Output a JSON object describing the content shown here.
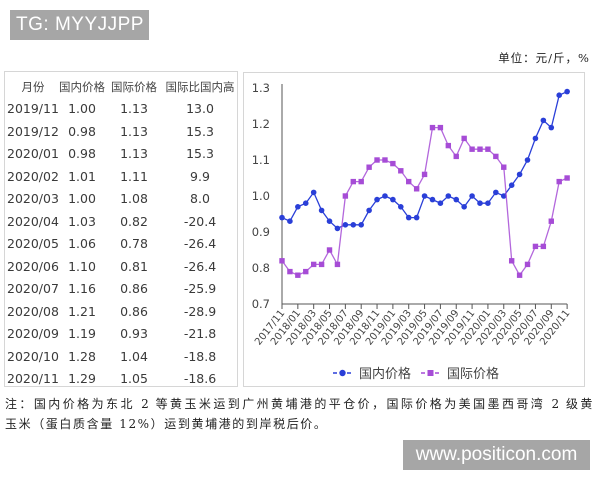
{
  "watermark_top": "TG: MYYJJPP",
  "watermark_bottom": "www.positicon.com",
  "unit_label": "单位：元/斤，%",
  "table": {
    "headers": [
      "月份",
      "国内价格",
      "国际价格",
      "国际比国内高"
    ],
    "rows": [
      {
        "month": "2019/11",
        "domestic": "1.00",
        "international": "1.13",
        "diff": "13.0"
      },
      {
        "month": "2019/12",
        "domestic": "0.98",
        "international": "1.13",
        "diff": "15.3"
      },
      {
        "month": "2020/01",
        "domestic": "0.98",
        "international": "1.13",
        "diff": "15.3"
      },
      {
        "month": "2020/02",
        "domestic": "1.01",
        "international": "1.11",
        "diff": "9.9"
      },
      {
        "month": "2020/03",
        "domestic": "1.00",
        "international": "1.08",
        "diff": "8.0"
      },
      {
        "month": "2020/04",
        "domestic": "1.03",
        "international": "0.82",
        "diff": "-20.4"
      },
      {
        "month": "2020/05",
        "domestic": "1.06",
        "international": "0.78",
        "diff": "-26.4"
      },
      {
        "month": "2020/06",
        "domestic": "1.10",
        "international": "0.81",
        "diff": "-26.4"
      },
      {
        "month": "2020/07",
        "domestic": "1.16",
        "international": "0.86",
        "diff": "-25.9"
      },
      {
        "month": "2020/08",
        "domestic": "1.21",
        "international": "0.86",
        "diff": "-28.9"
      },
      {
        "month": "2020/09",
        "domestic": "1.19",
        "international": "0.93",
        "diff": "-21.8"
      },
      {
        "month": "2020/10",
        "domestic": "1.28",
        "international": "1.04",
        "diff": "-18.8"
      },
      {
        "month": "2020/11",
        "domestic": "1.29",
        "international": "1.05",
        "diff": "-18.6"
      }
    ]
  },
  "note": {
    "line1": "注：国内价格为东北 2 等黄玉米运到广州黄埔港的平仓价，国际价格为美国墨西哥湾 2 级黄",
    "line2": "玉米（蛋白质含量 12%）运到黄埔港的到岸税后价。"
  },
  "chart_data": {
    "type": "line",
    "title": "",
    "xlabel": "",
    "ylabel": "",
    "ylim": [
      0.7,
      1.3
    ],
    "yticks": [
      "0.7",
      "0.8",
      "0.9",
      "1.0",
      "1.1",
      "1.2",
      "1.3"
    ],
    "grid": false,
    "legend_position": "bottom",
    "x": [
      "2017/11",
      "2017/12",
      "2018/01",
      "2018/02",
      "2018/03",
      "2018/04",
      "2018/05",
      "2018/06",
      "2018/07",
      "2018/08",
      "2018/09",
      "2018/10",
      "2018/11",
      "2018/12",
      "2019/01",
      "2019/02",
      "2019/03",
      "2019/04",
      "2019/05",
      "2019/06",
      "2019/07",
      "2019/08",
      "2019/09",
      "2019/10",
      "2019/11",
      "2019/12",
      "2020/01",
      "2020/02",
      "2020/03",
      "2020/04",
      "2020/05",
      "2020/06",
      "2020/07",
      "2020/08",
      "2020/09",
      "2020/10",
      "2020/11"
    ],
    "xtick_labels": [
      "2017/11",
      "2018/01",
      "2018/03",
      "2018/05",
      "2018/07",
      "2018/09",
      "2018/11",
      "2019/01",
      "2019/03",
      "2019/05",
      "2019/07",
      "2019/09",
      "2019/11",
      "2020/01",
      "2020/03",
      "2020/05",
      "2020/07",
      "2020/09",
      "2020/11"
    ],
    "series": [
      {
        "name": "国内价格",
        "color": "#2a3fd8",
        "marker": "circle",
        "values": [
          0.94,
          0.93,
          0.97,
          0.98,
          1.01,
          0.96,
          0.93,
          0.91,
          0.92,
          0.92,
          0.92,
          0.96,
          0.99,
          1.0,
          0.99,
          0.97,
          0.94,
          0.94,
          1.0,
          0.99,
          0.98,
          1.0,
          0.99,
          0.97,
          1.0,
          0.98,
          0.98,
          1.01,
          1.0,
          1.03,
          1.06,
          1.1,
          1.16,
          1.21,
          1.19,
          1.28,
          1.29
        ]
      },
      {
        "name": "国际价格",
        "color": "#a64cd6",
        "marker": "square",
        "values": [
          0.82,
          0.79,
          0.78,
          0.79,
          0.81,
          0.81,
          0.85,
          0.81,
          1.0,
          1.04,
          1.04,
          1.08,
          1.1,
          1.1,
          1.09,
          1.07,
          1.04,
          1.02,
          1.06,
          1.19,
          1.19,
          1.14,
          1.11,
          1.16,
          1.13,
          1.13,
          1.13,
          1.11,
          1.08,
          0.82,
          0.78,
          0.81,
          0.86,
          0.86,
          0.93,
          1.04,
          1.05
        ]
      }
    ]
  }
}
